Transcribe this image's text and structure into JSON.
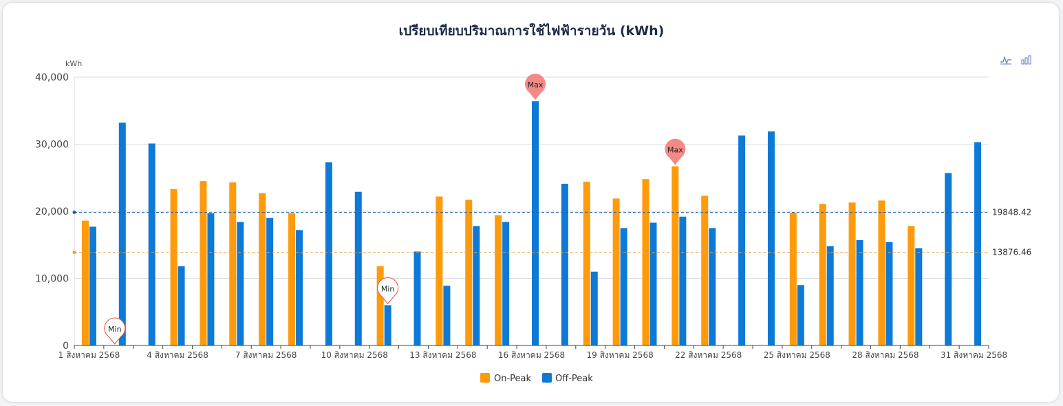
{
  "chart_data": {
    "type": "bar",
    "title": "เปรียบเทียบปริมาณการใช้ไฟฟ้ารายวัน (kWh)",
    "ylabel": "kWh",
    "ylim": [
      0,
      40000
    ],
    "yticks": [
      0,
      10000,
      20000,
      30000,
      40000
    ],
    "ytick_labels": [
      "0",
      "10,000",
      "20,000",
      "30,000",
      "40,000"
    ],
    "grid": true,
    "legend_position": "bottom-center",
    "categories": [
      "1",
      "2",
      "3",
      "4",
      "5",
      "6",
      "7",
      "8",
      "9",
      "10",
      "11",
      "12",
      "13",
      "14",
      "15",
      "16",
      "17",
      "18",
      "19",
      "20",
      "21",
      "22",
      "23",
      "24",
      "25",
      "26",
      "27",
      "28",
      "29",
      "30",
      "31"
    ],
    "xtick_labels": [
      "1 สิงหาคม 2568",
      "",
      "",
      "4 สิงหาคม 2568",
      "",
      "",
      "7 สิงหาคม 2568",
      "",
      "",
      "10 สิงหาคม 2568",
      "",
      "",
      "13 สิงหาคม 2568",
      "",
      "",
      "16 สิงหาคม 2568",
      "",
      "",
      "19 สิงหาคม 2568",
      "",
      "",
      "22 สิงหาคม 2568",
      "",
      "",
      "25 สิงหาคม 2568",
      "",
      "",
      "28 สิงหาคม 2568",
      "",
      "",
      "31 สิงหาคม 2568"
    ],
    "series": [
      {
        "name": "On-Peak",
        "color": "#ff9a0a",
        "values": [
          18600,
          0,
          0,
          23300,
          24500,
          24300,
          22700,
          19700,
          0,
          0,
          11800,
          0,
          22200,
          21700,
          19400,
          0,
          0,
          24400,
          21900,
          24800,
          26700,
          22300,
          0,
          0,
          19800,
          21100,
          21300,
          21600,
          17800,
          0,
          0
        ]
      },
      {
        "name": "Off-Peak",
        "color": "#0e7ad8",
        "values": [
          17700,
          33200,
          30100,
          11800,
          19700,
          18400,
          19000,
          17200,
          27300,
          22900,
          6000,
          14000,
          8900,
          17800,
          18400,
          36400,
          24100,
          11000,
          17500,
          18300,
          19200,
          17500,
          31300,
          31900,
          9000,
          14800,
          15700,
          15400,
          14500,
          25700,
          30300
        ]
      }
    ],
    "mark_lines": [
      {
        "series": "Off-Peak",
        "value": 19848.42,
        "label": "19848.42",
        "color": "#1f5fa8"
      },
      {
        "series": "On-Peak",
        "value": 13876.46,
        "label": "13876.46",
        "color": "#e8a040"
      }
    ],
    "mark_points": [
      {
        "label": "Max",
        "series": "Off-Peak",
        "index": 15,
        "type": "max"
      },
      {
        "label": "Max",
        "series": "On-Peak",
        "index": 20,
        "type": "max"
      },
      {
        "label": "Min",
        "series": "On-Peak",
        "index": 1,
        "type": "min"
      },
      {
        "label": "Min",
        "series": "Off-Peak",
        "index": 10,
        "type": "min"
      }
    ],
    "toolbox": [
      "line-chart-icon",
      "bar-chart-icon"
    ]
  }
}
